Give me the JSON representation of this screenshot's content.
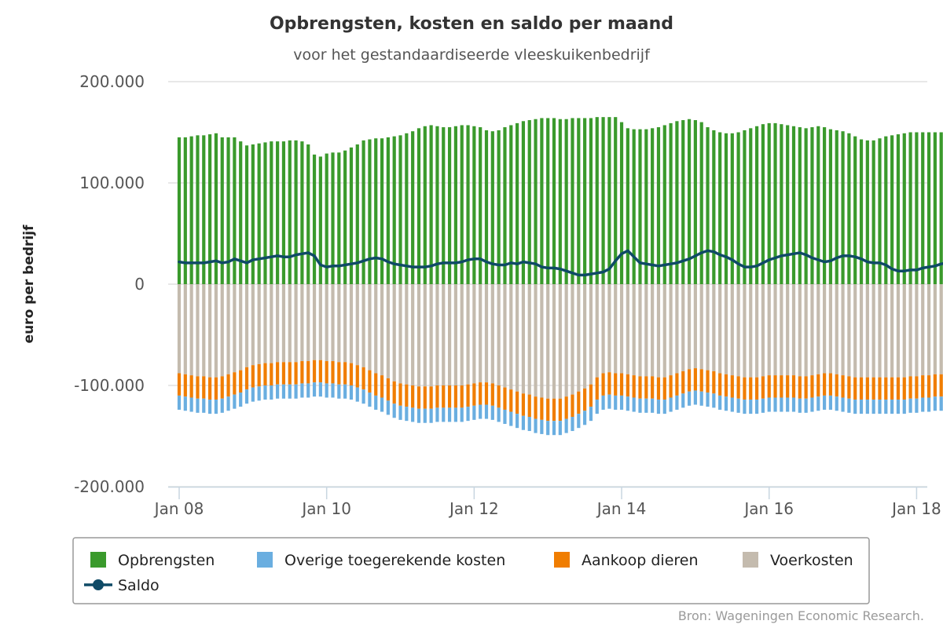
{
  "chart_data": {
    "type": "bar",
    "title": "Opbrengsten, kosten en saldo per maand",
    "subtitle": "voor het gestandaardiseerde vleeskuikenbedrijf",
    "ylabel": "euro per bedrijf",
    "ylim": [
      -200000,
      200000
    ],
    "yticks": [
      {
        "value": 200000,
        "label": "200.000"
      },
      {
        "value": 100000,
        "label": "100.000"
      },
      {
        "value": 0,
        "label": "0"
      },
      {
        "value": -100000,
        "label": "-100.000"
      },
      {
        "value": -200000,
        "label": "-200.000"
      }
    ],
    "xticks": [
      {
        "index": 0,
        "label": "Jan 08"
      },
      {
        "index": 24,
        "label": "Jan 10"
      },
      {
        "index": 48,
        "label": "Jan 12"
      },
      {
        "index": 72,
        "label": "Jan 14"
      },
      {
        "index": 96,
        "label": "Jan 16"
      },
      {
        "index": 120,
        "label": "Jan 18"
      }
    ],
    "x_start": "2008-01",
    "grid": true,
    "legend_position": "bottom",
    "series": [
      {
        "name": "Opbrengsten",
        "kind": "bar",
        "color": "#3a9a2c",
        "values": [
          145000,
          145000,
          146000,
          147000,
          147000,
          148000,
          149000,
          145000,
          145000,
          145000,
          141000,
          137000,
          138000,
          139000,
          140000,
          141000,
          141000,
          141000,
          142000,
          142000,
          141000,
          138000,
          128000,
          126000,
          129000,
          130000,
          130000,
          132000,
          135000,
          138000,
          142000,
          143000,
          144000,
          144000,
          145000,
          146000,
          147000,
          149000,
          151000,
          154000,
          156000,
          157000,
          156000,
          155000,
          155000,
          156000,
          157000,
          157000,
          156000,
          155000,
          152000,
          151000,
          152000,
          155000,
          157000,
          159000,
          161000,
          162000,
          163000,
          164000,
          164000,
          164000,
          163000,
          163000,
          164000,
          164000,
          164000,
          164000,
          165000,
          165000,
          165000,
          165000,
          160000,
          154000,
          153000,
          153000,
          153000,
          154000,
          155000,
          157000,
          159000,
          161000,
          162000,
          163000,
          162000,
          160000,
          155000,
          152000,
          150000,
          149000,
          149000,
          150000,
          152000,
          154000,
          156000,
          158000,
          159000,
          159000,
          158000,
          157000,
          156000,
          155000,
          154000,
          155000,
          156000,
          155000,
          153000,
          152000,
          151000,
          149000,
          146000,
          143000,
          142000,
          142000,
          144000,
          146000,
          147000,
          148000,
          149000,
          150000,
          150000,
          150000,
          150000,
          150000,
          150000,
          150000,
          150000,
          150000,
          150000,
          150000
        ]
      },
      {
        "name": "Overige toegerekende kosten",
        "kind": "bar",
        "color": "#6aaee0",
        "values": [
          -14000,
          -14000,
          -14000,
          -14000,
          -14000,
          -14000,
          -14000,
          -14000,
          -14000,
          -14000,
          -14000,
          -14000,
          -14000,
          -14000,
          -14000,
          -14000,
          -14000,
          -14000,
          -14000,
          -14000,
          -14000,
          -14000,
          -14000,
          -14000,
          -14000,
          -14000,
          -14000,
          -14000,
          -14000,
          -14000,
          -14000,
          -14000,
          -14000,
          -14000,
          -14000,
          -14000,
          -14000,
          -14000,
          -14000,
          -14000,
          -14000,
          -14000,
          -14000,
          -14000,
          -14000,
          -14000,
          -14000,
          -14000,
          -14000,
          -14000,
          -14000,
          -14000,
          -14000,
          -14000,
          -14000,
          -14000,
          -14000,
          -14000,
          -14000,
          -14000,
          -14000,
          -14000,
          -14000,
          -14000,
          -14000,
          -14000,
          -14000,
          -14000,
          -14000,
          -14000,
          -14000,
          -14000,
          -14000,
          -14000,
          -14000,
          -14000,
          -14000,
          -14000,
          -14000,
          -14000,
          -14000,
          -14000,
          -14000,
          -14000,
          -14000,
          -14000,
          -14000,
          -14000,
          -14000,
          -14000,
          -14000,
          -14000,
          -14000,
          -14000,
          -14000,
          -14000,
          -14000,
          -14000,
          -14000,
          -14000,
          -14000,
          -14000,
          -14000,
          -14000,
          -14000,
          -14000,
          -14000,
          -14000,
          -14000,
          -14000,
          -14000,
          -14000,
          -14000,
          -14000,
          -14000,
          -14000,
          -14000,
          -14000,
          -14000,
          -14000,
          -14000,
          -14000,
          -14000,
          -14000,
          -14000,
          -14000,
          -14000,
          -14000,
          -14000,
          -14000
        ]
      },
      {
        "name": "Aankoop dieren",
        "kind": "bar",
        "color": "#f07d00",
        "values": [
          -22000,
          -22000,
          -22000,
          -22000,
          -22000,
          -22000,
          -22000,
          -22000,
          -22000,
          -22000,
          -22000,
          -22000,
          -22000,
          -22000,
          -22000,
          -22000,
          -22000,
          -22000,
          -22000,
          -22000,
          -22000,
          -22000,
          -22000,
          -22000,
          -22000,
          -22000,
          -22000,
          -22000,
          -22000,
          -22000,
          -22000,
          -22000,
          -22000,
          -22000,
          -22000,
          -22000,
          -22000,
          -22000,
          -22000,
          -22000,
          -22000,
          -22000,
          -22000,
          -22000,
          -22000,
          -22000,
          -22000,
          -22000,
          -22000,
          -22000,
          -22000,
          -22000,
          -22000,
          -22000,
          -22000,
          -22000,
          -22000,
          -22000,
          -22000,
          -22000,
          -22000,
          -22000,
          -22000,
          -22000,
          -22000,
          -22000,
          -22000,
          -22000,
          -22000,
          -22000,
          -22000,
          -22000,
          -22000,
          -22000,
          -22000,
          -22000,
          -22000,
          -22000,
          -22000,
          -22000,
          -22000,
          -22000,
          -22000,
          -22000,
          -22000,
          -22000,
          -22000,
          -22000,
          -22000,
          -22000,
          -22000,
          -22000,
          -22000,
          -22000,
          -22000,
          -22000,
          -22000,
          -22000,
          -22000,
          -22000,
          -22000,
          -22000,
          -22000,
          -22000,
          -22000,
          -22000,
          -22000,
          -22000,
          -22000,
          -22000,
          -22000,
          -22000,
          -22000,
          -22000,
          -22000,
          -22000,
          -22000,
          -22000,
          -22000,
          -22000,
          -22000,
          -22000,
          -22000,
          -22000,
          -22000,
          -22000,
          -22000,
          -22000,
          -22000,
          -22000,
          -22000
        ]
      },
      {
        "name": "Voerkosten",
        "kind": "bar",
        "color": "#c4bbae",
        "values": [
          -88000,
          -89000,
          -90000,
          -91000,
          -91000,
          -92000,
          -92000,
          -91000,
          -89000,
          -87000,
          -85000,
          -82000,
          -80000,
          -79000,
          -78000,
          -78000,
          -77000,
          -77000,
          -77000,
          -77000,
          -76000,
          -76000,
          -75000,
          -75000,
          -76000,
          -76000,
          -77000,
          -77000,
          -78000,
          -80000,
          -82000,
          -85000,
          -88000,
          -90000,
          -93000,
          -96000,
          -98000,
          -99000,
          -100000,
          -101000,
          -101000,
          -101000,
          -100000,
          -100000,
          -100000,
          -100000,
          -100000,
          -99000,
          -98000,
          -97000,
          -97000,
          -98000,
          -100000,
          -102000,
          -104000,
          -106000,
          -108000,
          -109000,
          -111000,
          -112000,
          -113000,
          -113000,
          -113000,
          -111000,
          -109000,
          -106000,
          -103000,
          -99000,
          -92000,
          -88000,
          -87000,
          -88000,
          -88000,
          -89000,
          -90000,
          -91000,
          -91000,
          -91000,
          -92000,
          -92000,
          -90000,
          -88000,
          -86000,
          -84000,
          -83000,
          -84000,
          -85000,
          -86000,
          -88000,
          -89000,
          -90000,
          -91000,
          -92000,
          -92000,
          -92000,
          -91000,
          -90000,
          -90000,
          -90000,
          -90000,
          -90000,
          -91000,
          -91000,
          -90000,
          -89000,
          -88000,
          -88000,
          -89000,
          -90000,
          -91000,
          -92000,
          -92000,
          -92000,
          -92000,
          -92000,
          -92000,
          -92000,
          -92000,
          -92000,
          -91000,
          -91000,
          -90000,
          -90000,
          -89000,
          -89000,
          -89000,
          -89000,
          -89000,
          -89000,
          -89000,
          -89000
        ]
      },
      {
        "name": "Saldo",
        "kind": "line",
        "color": "#0f4a66",
        "values": [
          22000,
          21000,
          21000,
          21000,
          21000,
          22000,
          23000,
          21000,
          22000,
          25000,
          23000,
          21000,
          24000,
          25000,
          26000,
          27000,
          28000,
          27000,
          27000,
          29000,
          30000,
          31000,
          28000,
          19000,
          17000,
          18000,
          18000,
          19000,
          20000,
          21000,
          23000,
          25000,
          26000,
          25000,
          22000,
          20000,
          19000,
          18000,
          17000,
          17000,
          17000,
          18000,
          20000,
          21000,
          21000,
          21000,
          22000,
          24000,
          25000,
          25000,
          22000,
          20000,
          19000,
          19000,
          21000,
          20000,
          22000,
          21000,
          20000,
          17000,
          16000,
          16000,
          15000,
          13000,
          11000,
          9000,
          9000,
          10000,
          11000,
          12000,
          15000,
          23000,
          30000,
          33000,
          27000,
          21000,
          20000,
          19000,
          18000,
          19000,
          20000,
          21000,
          23000,
          25000,
          28000,
          31000,
          33000,
          32000,
          29000,
          27000,
          24000,
          20000,
          17000,
          17000,
          18000,
          21000,
          24000,
          26000,
          28000,
          29000,
          30000,
          31000,
          29000,
          26000,
          24000,
          22000,
          23000,
          26000,
          28000,
          28000,
          27000,
          25000,
          22000,
          21000,
          21000,
          19000,
          15000,
          13000,
          13000,
          14000,
          14000,
          16000,
          17000,
          18000,
          20000,
          21000,
          22000,
          23000,
          23000,
          23000,
          23000
        ]
      }
    ]
  },
  "legend": {
    "items": [
      {
        "label": "Opbrengsten",
        "color": "#3a9a2c",
        "kind": "bar"
      },
      {
        "label": "Overige toegerekende kosten",
        "color": "#6aaee0",
        "kind": "bar"
      },
      {
        "label": "Aankoop dieren",
        "color": "#f07d00",
        "kind": "bar"
      },
      {
        "label": "Voerkosten",
        "color": "#c4bbae",
        "kind": "bar"
      },
      {
        "label": "Saldo",
        "color": "#0f4a66",
        "kind": "line"
      }
    ]
  },
  "source": "Bron: Wageningen Economic Research."
}
